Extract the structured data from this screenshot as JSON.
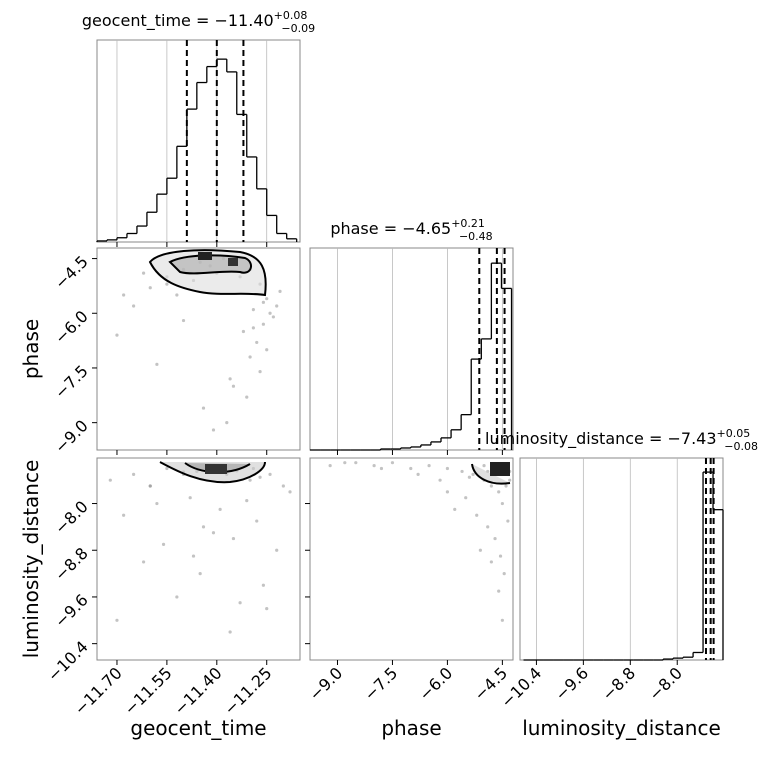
{
  "chart_data": [
    {
      "type": "histogram",
      "title": "geocent_time = −11.40",
      "title_upper": "+0.08",
      "title_lower": "−0.09",
      "bins": [
        -11.76,
        -11.73,
        -11.7,
        -11.67,
        -11.64,
        -11.61,
        -11.58,
        -11.55,
        -11.52,
        -11.49,
        -11.46,
        -11.43,
        -11.4,
        -11.37,
        -11.34,
        -11.31,
        -11.28,
        -11.25,
        -11.22,
        -11.19,
        -11.16
      ],
      "counts": [
        1,
        2,
        4,
        8,
        15,
        28,
        45,
        60,
        90,
        125,
        150,
        165,
        172,
        160,
        120,
        80,
        50,
        25,
        8,
        3
      ],
      "quantiles": [
        -11.49,
        -11.4,
        -11.32
      ],
      "xlim": [
        -11.76,
        -11.15
      ],
      "ylim": [
        0,
        190
      ],
      "xticks": [
        -11.7,
        -11.55,
        -11.4,
        -11.25
      ],
      "grid": true,
      "color": "#000000"
    },
    {
      "type": "scatter",
      "x": [
        -11.62,
        -11.55,
        -11.5,
        -11.45,
        -11.42,
        -11.38,
        -11.35,
        -11.3,
        -11.27,
        -11.25,
        -11.6,
        -11.52,
        -11.47,
        -11.4,
        -11.33,
        -11.29,
        -11.26,
        -11.24,
        -11.22,
        -11.28,
        -11.3,
        -11.27,
        -11.25,
        -11.32,
        -11.35,
        -11.5,
        -11.65,
        -11.7,
        -11.58,
        -11.44,
        -11.37,
        -11.31,
        -11.23,
        -11.21,
        -11.26,
        -11.29,
        -11.36,
        -11.41,
        -11.55,
        -11.68
      ],
      "y": [
        -4.9,
        -5.0,
        -4.8,
        -4.6,
        -4.7,
        -4.5,
        -4.6,
        -4.8,
        -5.2,
        -5.6,
        -5.3,
        -5.5,
        -5.1,
        -4.9,
        -5.0,
        -5.9,
        -6.3,
        -6.0,
        -5.8,
        -6.8,
        -7.2,
        -7.6,
        -7.0,
        -6.5,
        -8.0,
        -6.2,
        -5.8,
        -6.6,
        -7.4,
        -8.6,
        -9.0,
        -8.3,
        -6.1,
        -5.4,
        -5.7,
        -6.4,
        -7.8,
        -9.2,
        -5.2,
        -5.5
      ],
      "xlim": [
        -11.76,
        -11.15
      ],
      "ylim": [
        -9.75,
        -4.21
      ],
      "xticks": [
        -11.7,
        -11.55,
        -11.4,
        -11.25
      ],
      "yticks": [
        {
          "value": -4.5,
          "label": "−4.5"
        },
        {
          "value": -6.0,
          "label": "−6.0"
        },
        {
          "value": -7.5,
          "label": "−7.5"
        },
        {
          "value": -9.0,
          "label": "−9.0"
        }
      ],
      "ylabel": "phase",
      "color": "#888888"
    },
    {
      "type": "histogram",
      "title": "phase = −4.65",
      "title_upper": "+0.21",
      "title_lower": "−0.48",
      "bins": [
        -9.75,
        -9.475,
        -9.2,
        -8.925,
        -8.65,
        -8.375,
        -8.1,
        -7.825,
        -7.55,
        -7.275,
        -7.0,
        -6.725,
        -6.45,
        -6.175,
        -5.9,
        -5.625,
        -5.35,
        -5.075,
        -4.8,
        -4.525,
        -4.25
      ],
      "counts": [
        0,
        0,
        0,
        0,
        0,
        0,
        0,
        1,
        1,
        2,
        3,
        5,
        8,
        12,
        20,
        35,
        90,
        110,
        185,
        160
      ],
      "quantiles": [
        -5.13,
        -4.65,
        -4.44
      ],
      "xlim": [
        -9.75,
        -4.21
      ],
      "ylim": [
        0,
        200
      ],
      "xticks": [
        -9.0,
        -7.5,
        -6.0,
        -4.5
      ],
      "grid": true,
      "color": "#000000"
    },
    {
      "type": "scatter",
      "x": [
        -11.72,
        -11.65,
        -11.6,
        -11.55,
        -11.5,
        -11.46,
        -11.42,
        -11.4,
        -11.37,
        -11.34,
        -11.3,
        -11.27,
        -11.24,
        -11.2,
        -11.18,
        -11.68,
        -11.58,
        -11.48,
        -11.44,
        -11.39,
        -11.35,
        -11.31,
        -11.28,
        -11.22,
        -11.62,
        -11.52,
        -11.45,
        -11.41,
        -11.36,
        -11.33,
        -11.26,
        -11.7,
        -11.56,
        -11.43,
        -11.38,
        -11.29,
        -11.5,
        -11.47,
        -11.25,
        -11.6
      ],
      "y": [
        -7.6,
        -7.5,
        -7.7,
        -7.4,
        -7.5,
        -7.45,
        -7.4,
        -7.42,
        -7.5,
        -7.44,
        -7.6,
        -7.55,
        -7.5,
        -7.7,
        -7.8,
        -8.2,
        -8.0,
        -7.9,
        -8.4,
        -8.1,
        -8.6,
        -7.95,
        -8.3,
        -8.8,
        -9.0,
        -9.6,
        -9.2,
        -8.5,
        -10.2,
        -9.7,
        -9.4,
        -10.0,
        -8.7,
        -7.35,
        -7.38,
        -7.4,
        -7.46,
        -8.9,
        -9.8,
        -7.7
      ],
      "xlim": [
        -11.76,
        -11.15
      ],
      "ylim": [
        -10.68,
        -7.22
      ],
      "xticks": [
        {
          "value": -11.7,
          "label": "−11.70"
        },
        {
          "value": -11.55,
          "label": "−11.55"
        },
        {
          "value": -11.4,
          "label": "−11.40"
        },
        {
          "value": -11.25,
          "label": "−11.25"
        }
      ],
      "yticks": [
        {
          "value": -8.0,
          "label": "−8.0"
        },
        {
          "value": -8.8,
          "label": "−8.8"
        },
        {
          "value": -9.6,
          "label": "−9.6"
        },
        {
          "value": -10.4,
          "label": "−10.4"
        }
      ],
      "xlabel": "geocent_time",
      "ylabel": "luminosity_distance",
      "color": "#888888"
    },
    {
      "type": "scatter",
      "x": [
        -9.2,
        -8.5,
        -8.0,
        -7.5,
        -7.0,
        -6.5,
        -6.0,
        -5.6,
        -5.3,
        -5.0,
        -4.8,
        -4.6,
        -4.5,
        -4.4,
        -4.3,
        -5.2,
        -4.9,
        -4.7,
        -4.55,
        -4.45,
        -5.5,
        -5.8,
        -6.2,
        -4.6,
        -4.5,
        -4.8,
        -5.1,
        -4.35,
        -4.4,
        -4.7,
        -6.8,
        -7.8,
        -8.8,
        -5.4,
        -4.9,
        -4.5,
        -4.6,
        -4.3,
        -5.0,
        -6.0
      ],
      "y": [
        -7.35,
        -7.3,
        -7.35,
        -7.3,
        -7.4,
        -7.35,
        -7.4,
        -7.45,
        -7.5,
        -7.6,
        -7.7,
        -7.8,
        -8.0,
        -7.5,
        -7.45,
        -8.2,
        -8.4,
        -8.6,
        -8.9,
        -9.2,
        -7.9,
        -8.1,
        -7.6,
        -9.5,
        -10.0,
        -9.0,
        -8.8,
        -8.3,
        -7.7,
        -7.4,
        -7.5,
        -7.4,
        -7.3,
        -7.55,
        -7.45,
        -7.42,
        -7.5,
        -7.6,
        -7.35,
        -7.8
      ],
      "xlim": [
        -9.75,
        -4.21
      ],
      "ylim": [
        -10.68,
        -7.22
      ],
      "xticks": [
        {
          "value": -9.0,
          "label": "−9.0"
        },
        {
          "value": -7.5,
          "label": "−7.5"
        },
        {
          "value": -6.0,
          "label": "−6.0"
        },
        {
          "value": -4.5,
          "label": "−4.5"
        }
      ],
      "yticks": [
        -8.0,
        -8.8,
        -9.6,
        -10.4
      ],
      "xlabel": "phase",
      "color": "#888888"
    },
    {
      "type": "histogram",
      "title": "luminosity_distance = −7.43",
      "title_upper": "+0.05",
      "title_lower": "−0.08",
      "bins": [
        -10.62,
        -10.45,
        -10.28,
        -10.11,
        -9.94,
        -9.77,
        -9.6,
        -9.43,
        -9.26,
        -9.09,
        -8.92,
        -8.75,
        -8.58,
        -8.41,
        -8.24,
        -8.07,
        -7.9,
        -7.73,
        -7.56,
        -7.39,
        -7.22
      ],
      "counts": [
        0,
        0,
        0,
        0,
        0,
        0,
        0,
        0,
        0,
        0,
        0,
        0,
        0,
        0,
        1,
        2,
        3,
        8,
        200,
        160
      ],
      "quantiles": [
        -7.51,
        -7.43,
        -7.38
      ],
      "xlim": [
        -10.68,
        -7.22
      ],
      "ylim": [
        0,
        215
      ],
      "xticks": [
        {
          "value": -10.4,
          "label": "−10.4"
        },
        {
          "value": -9.6,
          "label": "−9.6"
        },
        {
          "value": -8.8,
          "label": "−8.8"
        },
        {
          "value": -8.0,
          "label": "−8.0"
        }
      ],
      "xlabel": "luminosity_distance",
      "grid": true,
      "color": "#000000"
    }
  ]
}
